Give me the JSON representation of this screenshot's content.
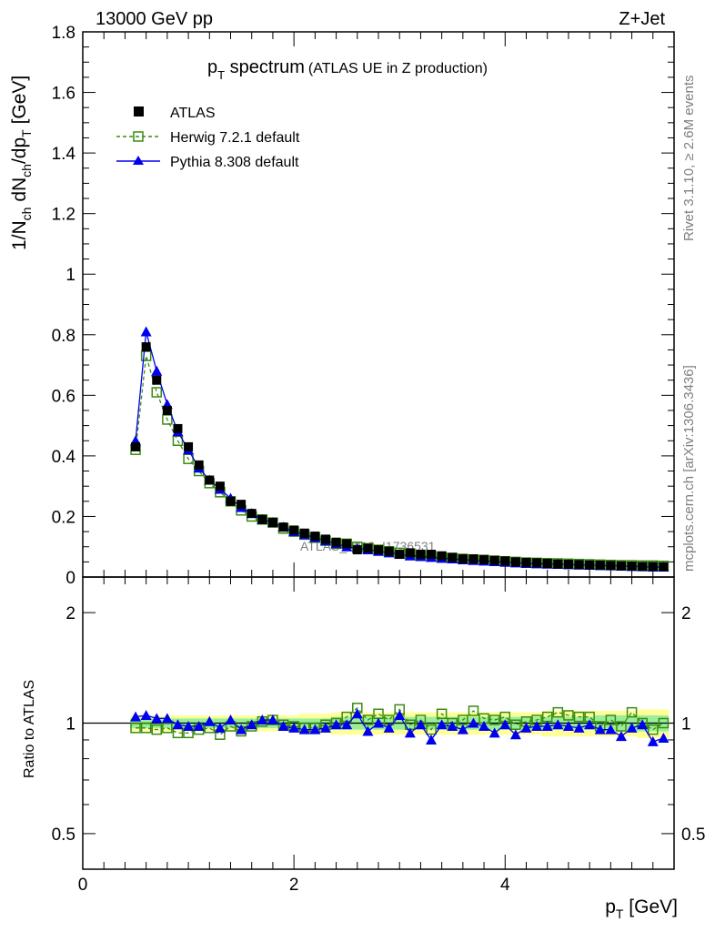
{
  "header": {
    "left": "13000 GeV pp",
    "right": "Z+Jet"
  },
  "title": {
    "main": "p",
    "sub": "T",
    "rest": " spectrum",
    "paren": "(ATLAS UE in Z production)"
  },
  "side_text": {
    "rivet": "Rivet 3.1.10, ≥ 2.6M events",
    "mcplots": "mcplots.cern.ch [arXiv:1306.3436]"
  },
  "watermark": "ATLAS_2019_I1736531",
  "axes": {
    "y_label": {
      "a": "1/N",
      "b": "ch",
      "c": " dN",
      "d": "ch",
      "e": "/dp",
      "f": "T",
      "g": " [GeV]"
    },
    "ratio_label": "Ratio to ATLAS",
    "x_label": {
      "a": "p",
      "b": "T",
      "c": " [GeV]"
    }
  },
  "legend": [
    "ATLAS",
    "Herwig 7.2.1 default",
    "Pythia 8.308 default"
  ],
  "colors": {
    "atlas": "#000000",
    "herwig": "#3a8c10",
    "pythia": "#0000ee",
    "band_outer": "#ffff99",
    "band_inner": "#99ee99"
  },
  "chart_data": [
    {
      "type": "scatter",
      "x": [
        0.5,
        0.6,
        0.7,
        0.8,
        0.9,
        1.0,
        1.1,
        1.2,
        1.3,
        1.4,
        1.5,
        1.6,
        1.7,
        1.8,
        1.9,
        2.0,
        2.1,
        2.2,
        2.3,
        2.4,
        2.5,
        2.6,
        2.7,
        2.8,
        2.9,
        3.0,
        3.1,
        3.2,
        3.3,
        3.4,
        3.5,
        3.6,
        3.7,
        3.8,
        3.9,
        4.0,
        4.1,
        4.2,
        4.3,
        4.4,
        4.5,
        4.6,
        4.7,
        4.8,
        4.9,
        5.0,
        5.1,
        5.2,
        5.3,
        5.4,
        5.5
      ],
      "series": [
        {
          "name": "ATLAS",
          "values": [
            0.43,
            0.76,
            0.65,
            0.55,
            0.49,
            0.43,
            0.37,
            0.32,
            0.3,
            0.25,
            0.24,
            0.21,
            0.19,
            0.18,
            0.165,
            0.155,
            0.145,
            0.135,
            0.125,
            0.115,
            0.11,
            0.09,
            0.095,
            0.09,
            0.085,
            0.075,
            0.08,
            0.075,
            0.075,
            0.07,
            0.065,
            0.06,
            0.06,
            0.058,
            0.055,
            0.053,
            0.05,
            0.048,
            0.047,
            0.045,
            0.043,
            0.042,
            0.041,
            0.04,
            0.039,
            0.038,
            0.037,
            0.036,
            0.035,
            0.035,
            0.034
          ]
        },
        {
          "name": "Herwig 7.2.1 default",
          "values": [
            0.42,
            0.73,
            0.61,
            0.52,
            0.45,
            0.39,
            0.35,
            0.31,
            0.28,
            0.25,
            0.22,
            0.2,
            0.19,
            0.18,
            0.16,
            0.15,
            0.14,
            0.13,
            0.12,
            0.11,
            0.11,
            0.1,
            0.095,
            0.09,
            0.085,
            0.08,
            0.075,
            0.07,
            0.07,
            0.065,
            0.063,
            0.06,
            0.058,
            0.056,
            0.054,
            0.052,
            0.05,
            0.048,
            0.047,
            0.046,
            0.045,
            0.044,
            0.043,
            0.042,
            0.041,
            0.04,
            0.039,
            0.039,
            0.038,
            0.038,
            0.037
          ]
        },
        {
          "name": "Pythia 8.308 default",
          "values": [
            0.45,
            0.81,
            0.68,
            0.57,
            0.48,
            0.42,
            0.36,
            0.32,
            0.29,
            0.26,
            0.23,
            0.21,
            0.19,
            0.18,
            0.165,
            0.15,
            0.14,
            0.13,
            0.12,
            0.11,
            0.1,
            0.095,
            0.09,
            0.085,
            0.08,
            0.075,
            0.07,
            0.068,
            0.065,
            0.062,
            0.06,
            0.057,
            0.055,
            0.053,
            0.051,
            0.049,
            0.047,
            0.045,
            0.044,
            0.043,
            0.042,
            0.041,
            0.04,
            0.039,
            0.038,
            0.037,
            0.036,
            0.035,
            0.034,
            0.033,
            0.033
          ]
        }
      ],
      "xlim": [
        0,
        5.6
      ],
      "ylim": [
        0,
        1.8
      ],
      "x_ticks": [
        0,
        2,
        4
      ],
      "y_ticks": [
        0,
        0.2,
        0.4,
        0.6,
        0.8,
        1,
        1.2,
        1.4,
        1.6,
        1.8
      ],
      "y_tick_labels": [
        "0",
        "0.2",
        "0.4",
        "0.6",
        "0.8",
        "1",
        "1.2",
        "1.4",
        "1.6",
        "1.8"
      ],
      "legend_position": "top-left"
    },
    {
      "type": "line",
      "x": [
        0.5,
        0.6,
        0.7,
        0.8,
        0.9,
        1.0,
        1.1,
        1.2,
        1.3,
        1.4,
        1.5,
        1.6,
        1.7,
        1.8,
        1.9,
        2.0,
        2.1,
        2.2,
        2.3,
        2.4,
        2.5,
        2.6,
        2.7,
        2.8,
        2.9,
        3.0,
        3.1,
        3.2,
        3.3,
        3.4,
        3.5,
        3.6,
        3.7,
        3.8,
        3.9,
        4.0,
        4.1,
        4.2,
        4.3,
        4.4,
        4.5,
        4.6,
        4.7,
        4.8,
        4.9,
        5.0,
        5.1,
        5.2,
        5.3,
        5.4,
        5.5
      ],
      "series": [
        {
          "name": "Herwig 7.2.1 default",
          "values": [
            0.97,
            0.97,
            0.96,
            0.97,
            0.94,
            0.94,
            0.96,
            0.97,
            0.93,
            0.98,
            0.95,
            0.98,
            1.01,
            1.02,
            0.99,
            0.98,
            0.97,
            0.97,
            0.99,
            1.0,
            1.04,
            1.1,
            1.02,
            1.06,
            1.02,
            1.09,
            0.99,
            1.02,
            0.96,
            1.06,
            1.0,
            1.02,
            1.08,
            1.03,
            1.02,
            1.04,
            0.99,
            1.01,
            1.02,
            1.04,
            1.07,
            1.05,
            1.04,
            1.04,
            0.98,
            1.02,
            0.98,
            1.07,
            1.0,
            0.96,
            1.0
          ]
        },
        {
          "name": "Pythia 8.308 default",
          "values": [
            1.04,
            1.05,
            1.03,
            1.03,
            0.99,
            0.98,
            0.98,
            1.01,
            0.97,
            1.02,
            0.96,
            0.99,
            1.02,
            1.02,
            0.98,
            0.97,
            0.96,
            0.96,
            0.97,
            0.99,
            0.99,
            1.06,
            0.95,
            1.0,
            0.97,
            1.05,
            0.94,
            0.99,
            0.9,
            0.99,
            0.98,
            0.96,
            1.0,
            0.98,
            0.94,
            0.99,
            0.93,
            0.97,
            0.98,
            0.98,
            0.99,
            0.98,
            0.97,
            0.99,
            0.96,
            0.96,
            0.92,
            0.97,
            0.99,
            0.89,
            0.91
          ]
        }
      ],
      "band_outer": [
        0.05,
        0.05,
        0.05,
        0.05,
        0.05,
        0.05,
        0.05,
        0.05,
        0.05,
        0.05,
        0.05,
        0.05,
        0.05,
        0.05,
        0.05,
        0.05,
        0.06,
        0.06,
        0.06,
        0.07,
        0.07,
        0.07,
        0.07,
        0.07,
        0.07,
        0.07,
        0.07,
        0.07,
        0.07,
        0.07,
        0.07,
        0.07,
        0.07,
        0.07,
        0.07,
        0.07,
        0.07,
        0.07,
        0.07,
        0.08,
        0.08,
        0.08,
        0.08,
        0.08,
        0.08,
        0.08,
        0.08,
        0.08,
        0.09,
        0.09,
        0.09
      ],
      "band_inner": [
        0.03,
        0.03,
        0.03,
        0.03,
        0.03,
        0.03,
        0.03,
        0.03,
        0.03,
        0.03,
        0.03,
        0.03,
        0.03,
        0.03,
        0.03,
        0.03,
        0.03,
        0.03,
        0.03,
        0.04,
        0.04,
        0.04,
        0.04,
        0.04,
        0.04,
        0.04,
        0.04,
        0.04,
        0.04,
        0.04,
        0.04,
        0.04,
        0.04,
        0.04,
        0.04,
        0.04,
        0.04,
        0.04,
        0.04,
        0.04,
        0.04,
        0.04,
        0.04,
        0.04,
        0.05,
        0.05,
        0.05,
        0.05,
        0.05,
        0.05,
        0.05
      ],
      "xlim": [
        0,
        5.6
      ],
      "ylim": [
        0.4,
        2.5
      ],
      "y_scale": "log",
      "y_ticks": [
        0.5,
        1,
        2
      ],
      "y_tick_labels": [
        "0.5",
        "1",
        "2"
      ],
      "x_ticks": [
        0,
        2,
        4
      ],
      "x_tick_labels": [
        "0",
        "2",
        "4"
      ]
    }
  ]
}
